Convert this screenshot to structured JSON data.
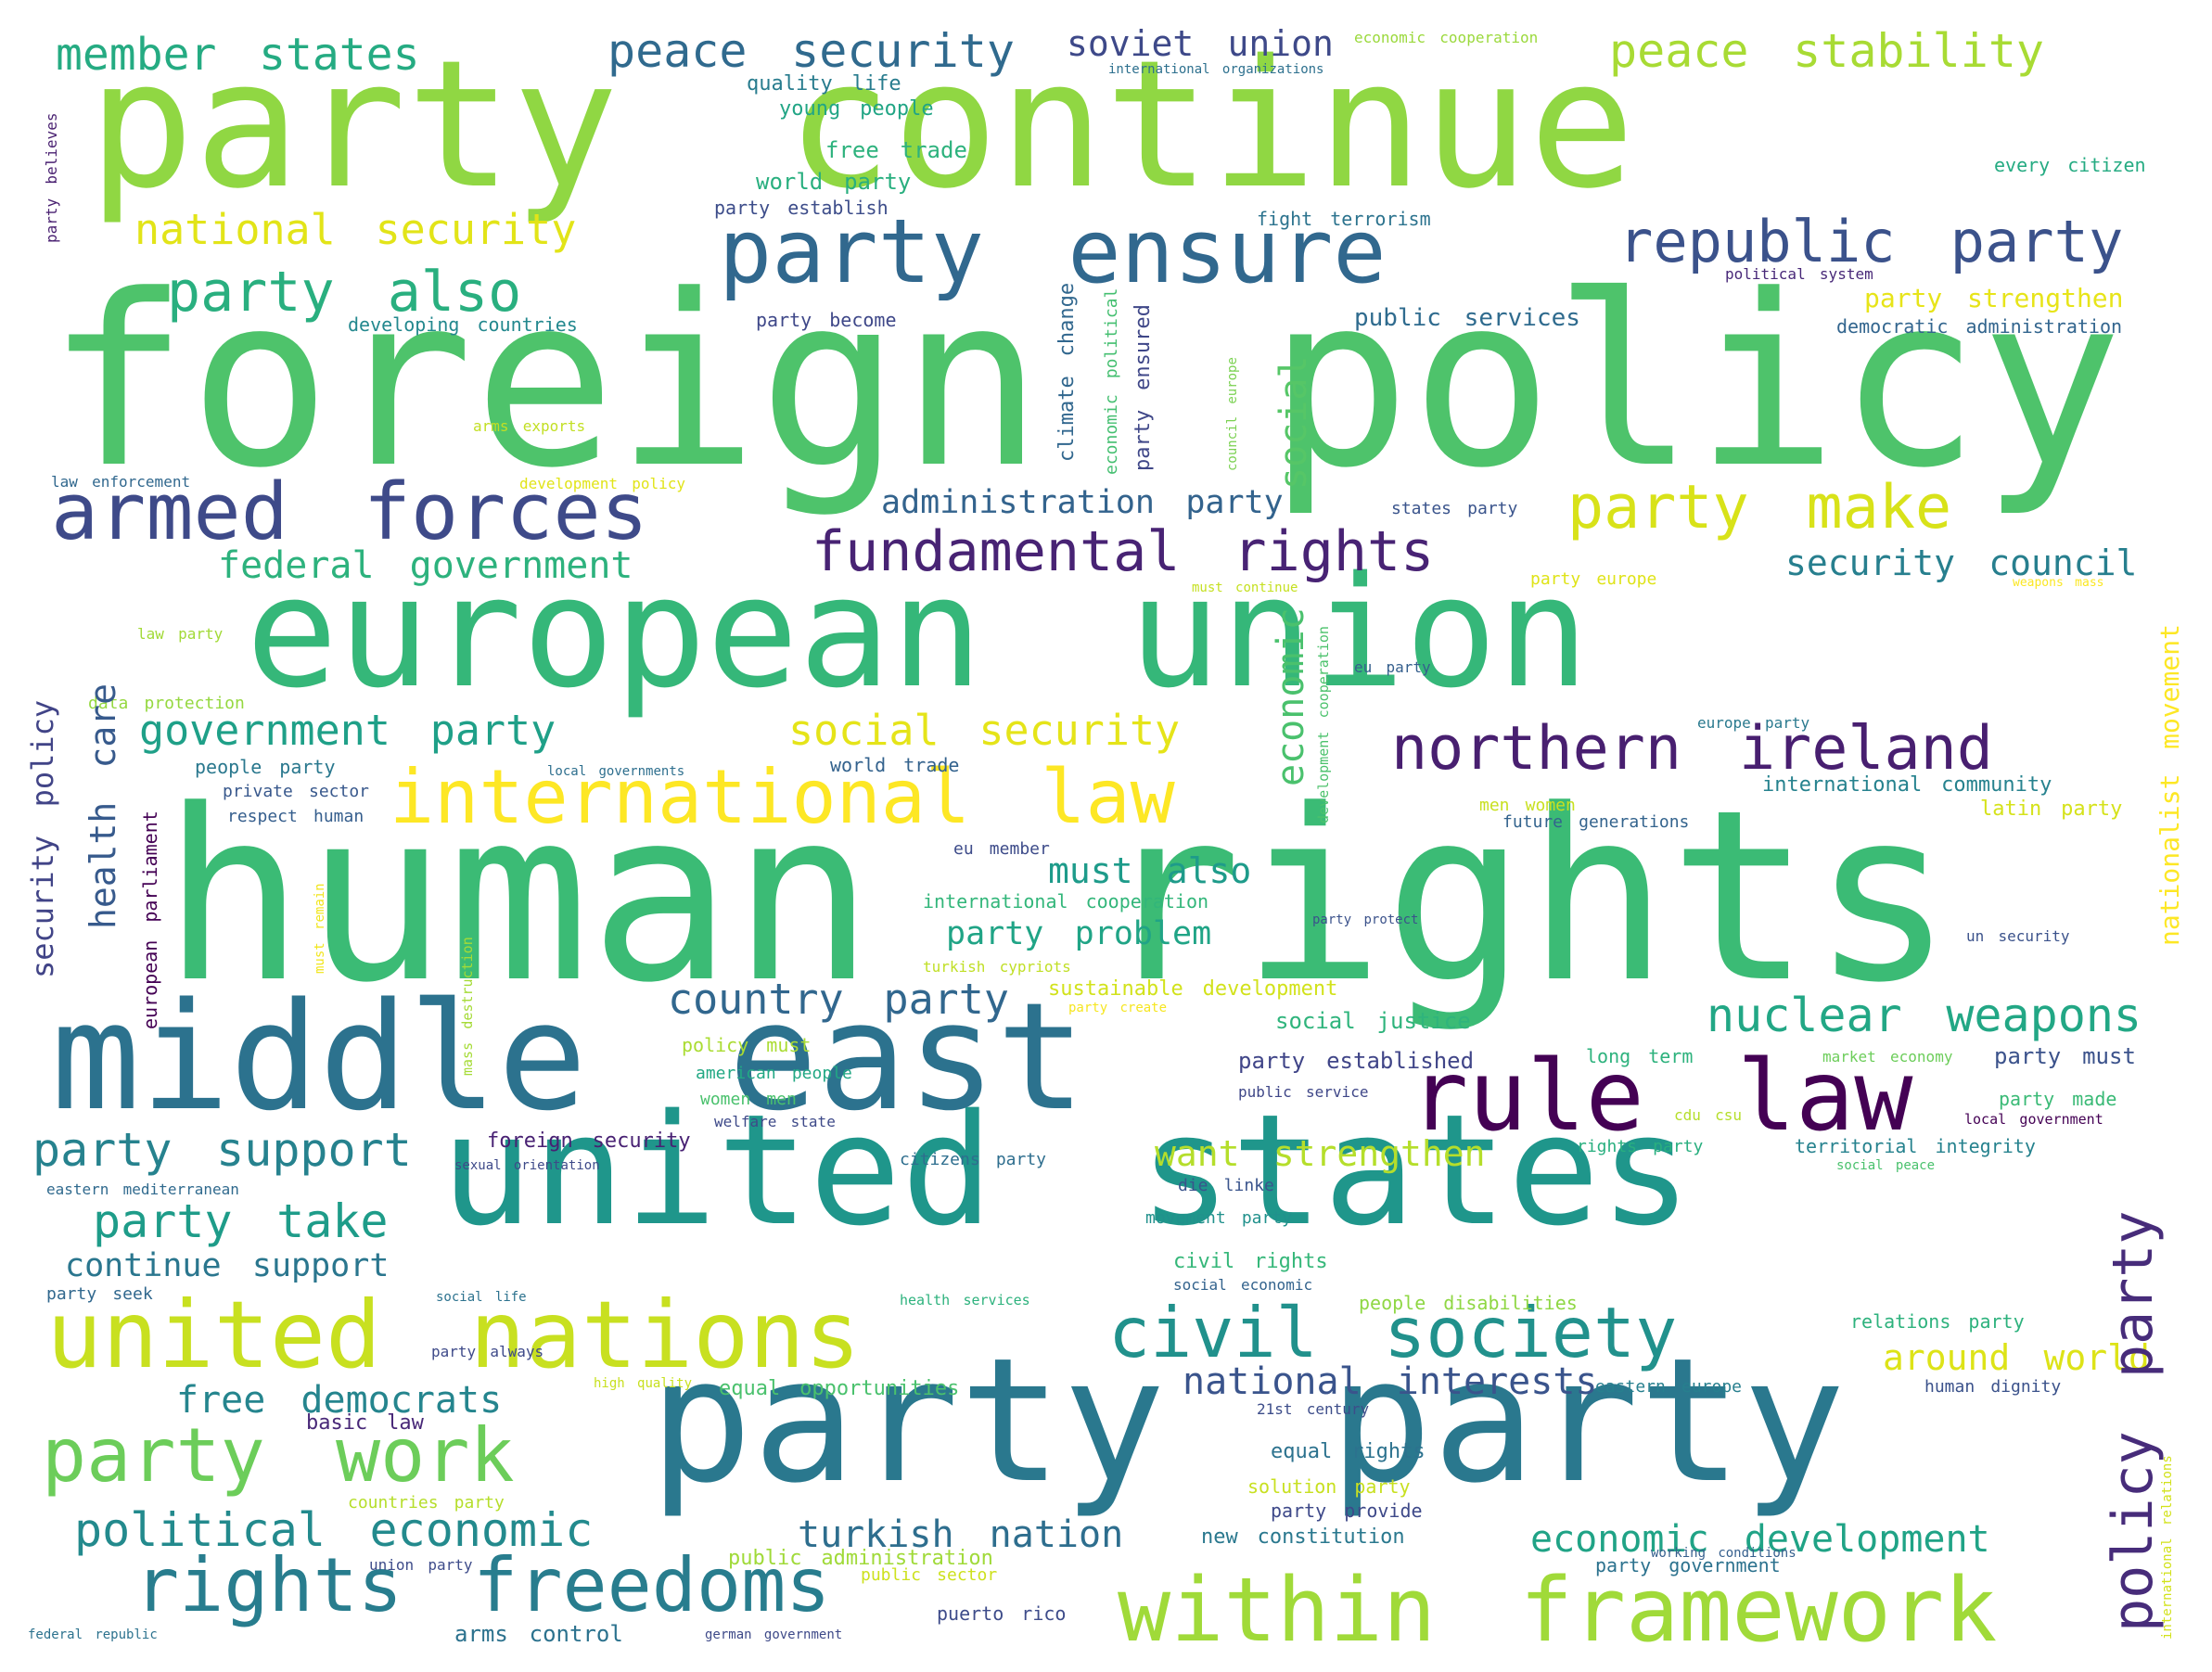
{
  "words": [
    {
      "text": "foreign policy",
      "color": "#4ec36b"
    },
    {
      "text": "party continue",
      "color": "#90d743"
    },
    {
      "text": "human rights",
      "color": "#3bbb75"
    },
    {
      "text": "european union",
      "color": "#35b779"
    },
    {
      "text": "united states",
      "color": "#1f968b"
    },
    {
      "text": "party party",
      "color": "#2a788e"
    },
    {
      "text": "middle east",
      "color": "#2c728e"
    },
    {
      "text": "united nations",
      "color": "#c8e020"
    },
    {
      "text": "party ensure",
      "color": "#31688e"
    },
    {
      "text": "within framework",
      "color": "#a0da39"
    },
    {
      "text": "rule law",
      "color": "#440154"
    },
    {
      "text": "international law",
      "color": "#fde725"
    },
    {
      "text": "armed forces",
      "color": "#3e4a89"
    },
    {
      "text": "rights freedoms",
      "color": "#287d8e"
    },
    {
      "text": "civil society",
      "color": "#21918c"
    },
    {
      "text": "party work",
      "color": "#6ccd5a"
    },
    {
      "text": "northern ireland",
      "color": "#481f70"
    },
    {
      "text": "fundamental rights",
      "color": "#482374"
    },
    {
      "text": "party make",
      "color": "#d8e219"
    },
    {
      "text": "republic party",
      "color": "#3b528b"
    },
    {
      "text": "policy party",
      "color": "#472c7a"
    },
    {
      "text": "party also",
      "color": "#29af7f"
    },
    {
      "text": "member states",
      "color": "#25ab82"
    },
    {
      "text": "peace security",
      "color": "#306a8e"
    },
    {
      "text": "peace stability",
      "color": "#a8db34"
    },
    {
      "text": "national security",
      "color": "#e2e418"
    },
    {
      "text": "nuclear weapons",
      "color": "#22a785"
    },
    {
      "text": "political economic",
      "color": "#238a8d"
    },
    {
      "text": "party support",
      "color": "#26828e"
    },
    {
      "text": "party take",
      "color": "#1e9c89"
    },
    {
      "text": "government party",
      "color": "#1fa088"
    },
    {
      "text": "social security",
      "color": "#e5e419"
    },
    {
      "text": "federal government",
      "color": "#2db27d"
    },
    {
      "text": "economic development",
      "color": "#20a386"
    },
    {
      "text": "health care",
      "color": "#375a8c"
    },
    {
      "text": "social",
      "color": "#56c667"
    },
    {
      "text": "economic",
      "color": "#4ac16d"
    },
    {
      "text": "security council",
      "color": "#277f8e"
    },
    {
      "text": "country party",
      "color": "#31678e"
    },
    {
      "text": "free democrats",
      "color": "#25858e"
    },
    {
      "text": "national interests",
      "color": "#3a548c"
    },
    {
      "text": "turkish nation",
      "color": "#2e6e8e"
    },
    {
      "text": "continue support",
      "color": "#2a768e"
    },
    {
      "text": "want strengthen",
      "color": "#b5de2b"
    },
    {
      "text": "around world",
      "color": "#dde318"
    },
    {
      "text": "must also",
      "color": "#1e9b8a"
    },
    {
      "text": "party problem",
      "color": "#20a486"
    },
    {
      "text": "administration party",
      "color": "#33638d"
    },
    {
      "text": "security policy",
      "color": "#414487"
    },
    {
      "text": "soviet union",
      "color": "#3e4989"
    },
    {
      "text": "nationalist movement",
      "color": "#fde725"
    },
    {
      "text": "party strengthen",
      "color": "#e7e419"
    },
    {
      "text": "public services",
      "color": "#2f6b8e"
    },
    {
      "text": "democratic administration",
      "color": "#32658e"
    },
    {
      "text": "international community",
      "color": "#26828e"
    },
    {
      "text": "latin party",
      "color": "#d5e21a"
    },
    {
      "text": "young people",
      "color": "#21a585"
    },
    {
      "text": "free trade",
      "color": "#2db27d"
    },
    {
      "text": "world party",
      "color": "#29af7f"
    },
    {
      "text": "quality life",
      "color": "#287c8e"
    },
    {
      "text": "party establish",
      "color": "#3d4d8a"
    },
    {
      "text": "developing countries",
      "color": "#23888e"
    },
    {
      "text": "party become",
      "color": "#3f4889"
    },
    {
      "text": "fight terrorism",
      "color": "#2c738e"
    },
    {
      "text": "every citizen",
      "color": "#25ab82"
    },
    {
      "text": "political system",
      "color": "#482878"
    },
    {
      "text": "economic cooperation",
      "color": "#9bd93c"
    },
    {
      "text": "international organizations",
      "color": "#2d708e"
    },
    {
      "text": "climate change",
      "color": "#31678e"
    },
    {
      "text": "economic political",
      "color": "#44bf70"
    },
    {
      "text": "party ensured",
      "color": "#3f4788"
    },
    {
      "text": "council europe",
      "color": "#7ad151"
    },
    {
      "text": "arms exports",
      "color": "#c2df23"
    },
    {
      "text": "law enforcement",
      "color": "#31688e"
    },
    {
      "text": "development policy",
      "color": "#e1e418"
    },
    {
      "text": "states party",
      "color": "#3a548c"
    },
    {
      "text": "party europe",
      "color": "#dfe318"
    },
    {
      "text": "weapons mass",
      "color": "#fbe723"
    },
    {
      "text": "must continue",
      "color": "#c5e021"
    },
    {
      "text": "eu party",
      "color": "#355f8d"
    },
    {
      "text": "europe party",
      "color": "#29798e"
    },
    {
      "text": "development cooperation",
      "color": "#4cc26c"
    },
    {
      "text": "law party",
      "color": "#a2da37"
    },
    {
      "text": "data protection",
      "color": "#95d840"
    },
    {
      "text": "people party",
      "color": "#2a788e"
    },
    {
      "text": "private sector",
      "color": "#38588c"
    },
    {
      "text": "respect human",
      "color": "#355e8d"
    },
    {
      "text": "local governments",
      "color": "#2e6f8e"
    },
    {
      "text": "world trade",
      "color": "#33628d"
    },
    {
      "text": "european parliament",
      "color": "#440154"
    },
    {
      "text": "must remain",
      "color": "#f1e51d"
    },
    {
      "text": "mass destruction",
      "color": "#a5db36"
    },
    {
      "text": "eu member",
      "color": "#3e4c8a"
    },
    {
      "text": "international cooperation",
      "color": "#32b67a"
    },
    {
      "text": "turkish cypriots",
      "color": "#c0df25"
    },
    {
      "text": "party protect",
      "color": "#3b528b"
    },
    {
      "text": "men women",
      "color": "#c8e020"
    },
    {
      "text": "future generations",
      "color": "#33638d"
    },
    {
      "text": "un security",
      "color": "#3b528b"
    },
    {
      "text": "sustainable development",
      "color": "#d2e21b"
    },
    {
      "text": "party create",
      "color": "#f6e620"
    },
    {
      "text": "social justice",
      "color": "#2fb47c"
    },
    {
      "text": "policy must",
      "color": "#aadc32"
    },
    {
      "text": "american people",
      "color": "#22a884"
    },
    {
      "text": "women men",
      "color": "#4ac16d"
    },
    {
      "text": "welfare state",
      "color": "#3e4a89"
    },
    {
      "text": "party established",
      "color": "#404588"
    },
    {
      "text": "long term",
      "color": "#2db27d"
    },
    {
      "text": "market economy",
      "color": "#6ccd5a"
    },
    {
      "text": "party must",
      "color": "#3b528b"
    },
    {
      "text": "public service",
      "color": "#3f4788"
    },
    {
      "text": "party made",
      "color": "#3aba76"
    },
    {
      "text": "cdu csu",
      "color": "#b5de2b"
    },
    {
      "text": "local government",
      "color": "#440154"
    },
    {
      "text": "foreign security",
      "color": "#482173"
    },
    {
      "text": "sexual orientation",
      "color": "#3e4a89"
    },
    {
      "text": "citizens party",
      "color": "#2e6e8e"
    },
    {
      "text": "rights party",
      "color": "#29af7f"
    },
    {
      "text": "territorial integrity",
      "color": "#26828e"
    },
    {
      "text": "social peace",
      "color": "#4ac16d"
    },
    {
      "text": "eastern mediterranean",
      "color": "#306a8e"
    },
    {
      "text": "die linke",
      "color": "#3a548c"
    },
    {
      "text": "movement party",
      "color": "#21918c"
    },
    {
      "text": "civil rights",
      "color": "#35b779"
    },
    {
      "text": "social economic",
      "color": "#33638d"
    },
    {
      "text": "party seek",
      "color": "#31688e"
    },
    {
      "text": "social life",
      "color": "#2c728e"
    },
    {
      "text": "health services",
      "color": "#2db27d"
    },
    {
      "text": "people disabilities",
      "color": "#8fd744"
    },
    {
      "text": "relations party",
      "color": "#2db27d"
    },
    {
      "text": "international relations",
      "color": "#d2e21b"
    },
    {
      "text": "party always",
      "color": "#3e4a89"
    },
    {
      "text": "high quality",
      "color": "#c8e020"
    },
    {
      "text": "equal opportunities",
      "color": "#4ac16d"
    },
    {
      "text": "eastern europe",
      "color": "#277f8e"
    },
    {
      "text": "human dignity",
      "color": "#3b528b"
    },
    {
      "text": "basic law",
      "color": "#482878"
    },
    {
      "text": "21st century",
      "color": "#3d4d8a"
    },
    {
      "text": "equal rights",
      "color": "#2c728e"
    },
    {
      "text": "solution party",
      "color": "#c8e020"
    },
    {
      "text": "countries party",
      "color": "#b5de2b"
    },
    {
      "text": "party provide",
      "color": "#3e4989"
    },
    {
      "text": "new constitution",
      "color": "#2a788e"
    },
    {
      "text": "working conditions",
      "color": "#355f8d"
    },
    {
      "text": "public administration",
      "color": "#a0da39"
    },
    {
      "text": "public sector",
      "color": "#cde11d"
    },
    {
      "text": "union party",
      "color": "#3e4c8a"
    },
    {
      "text": "party government",
      "color": "#2c728e"
    },
    {
      "text": "arms control",
      "color": "#2c728e"
    },
    {
      "text": "puerto rico",
      "color": "#3e4c8a"
    },
    {
      "text": "german government",
      "color": "#3e4a89"
    },
    {
      "text": "federal republic",
      "color": "#2c728e"
    },
    {
      "text": "party believes",
      "color": "#481f70"
    }
  ]
}
